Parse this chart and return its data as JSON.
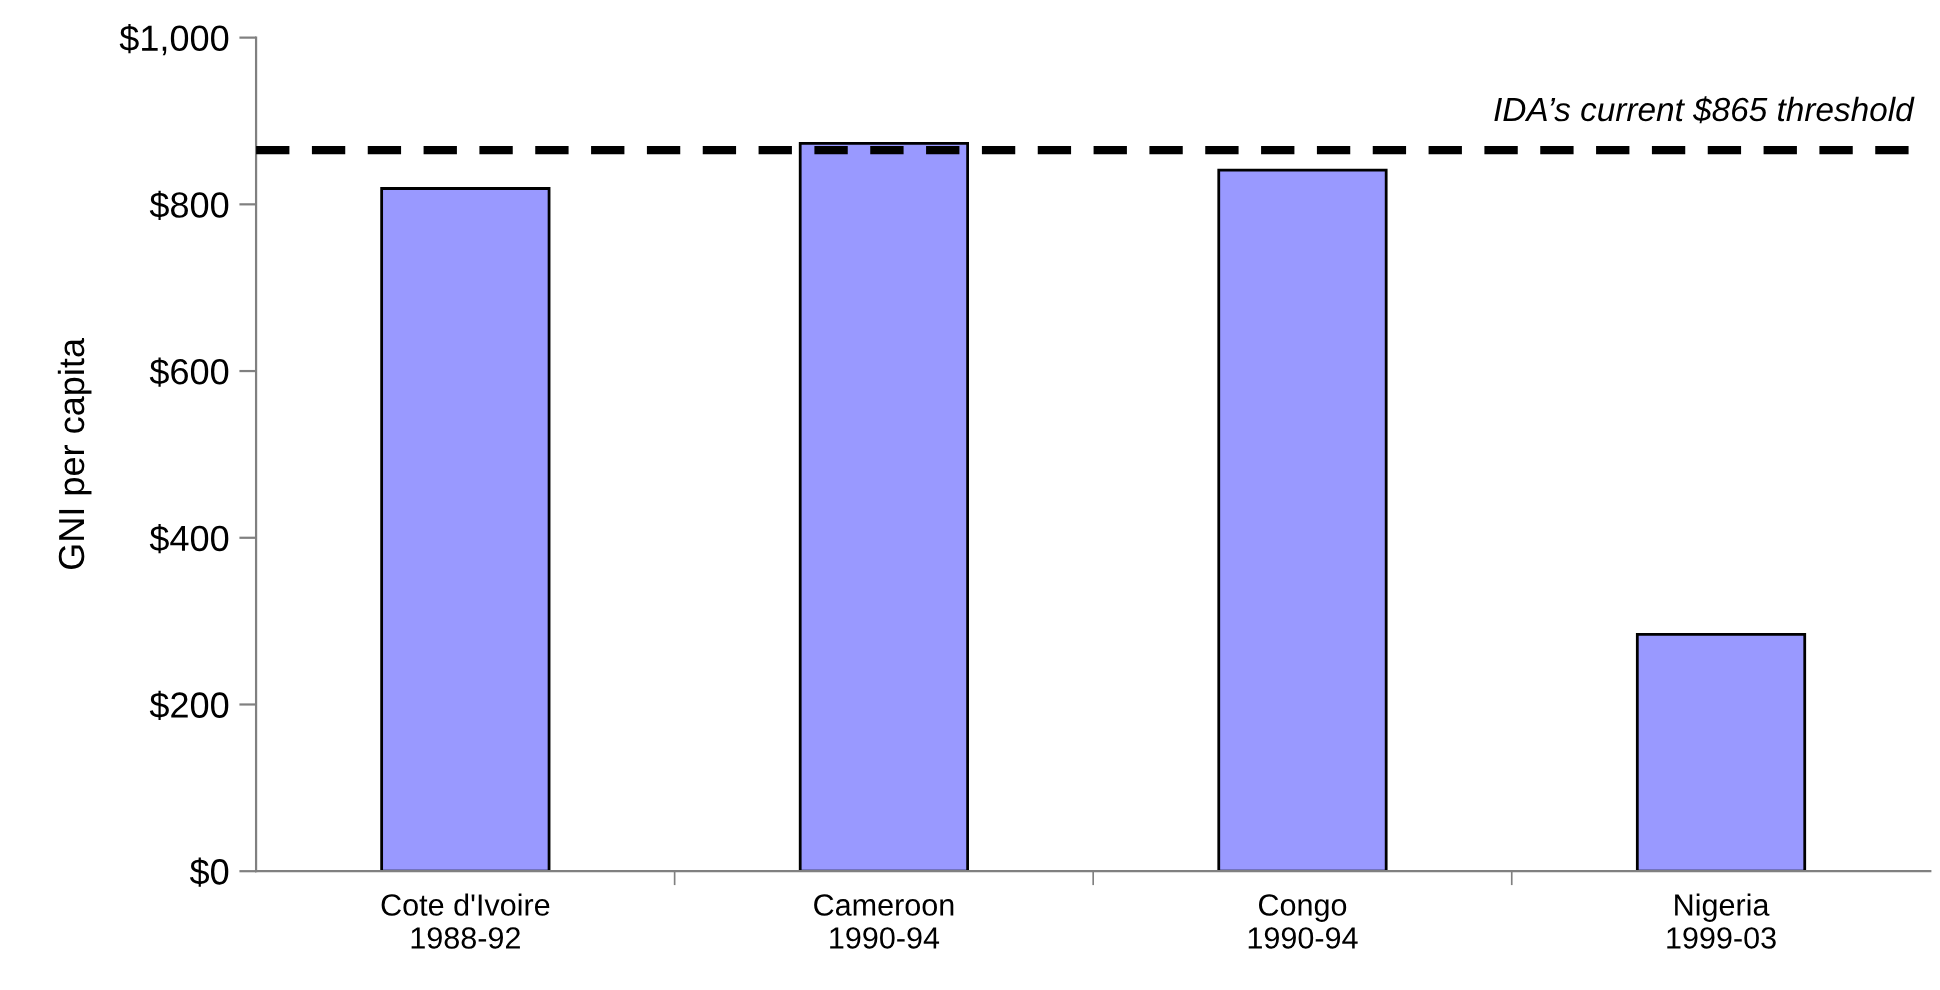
{
  "chart_data": {
    "type": "bar",
    "ylabel": "GNI per capita",
    "categories": [
      "Cote d'Ivoire\n1988-92",
      "Cameroon\n1990-94",
      "Congo\n1990-94",
      "Nigeria\n1999-03"
    ],
    "values": [
      819,
      873,
      841,
      284
    ],
    "color": "#9999ff",
    "ylim": [
      0,
      1000
    ],
    "yticks": [
      {
        "value": 0,
        "label": "$0"
      },
      {
        "value": 200,
        "label": "$200"
      },
      {
        "value": 400,
        "label": "$400"
      },
      {
        "value": 600,
        "label": "$600"
      },
      {
        "value": 800,
        "label": "$800"
      },
      {
        "value": 1000,
        "label": "$1,000"
      }
    ],
    "ref_lines": [
      {
        "axis": "y",
        "value": 865,
        "label": "IDA’s current $865 threshold",
        "color": "#000000",
        "line_style": "dashed"
      }
    ],
    "grid": false,
    "legend": false
  }
}
